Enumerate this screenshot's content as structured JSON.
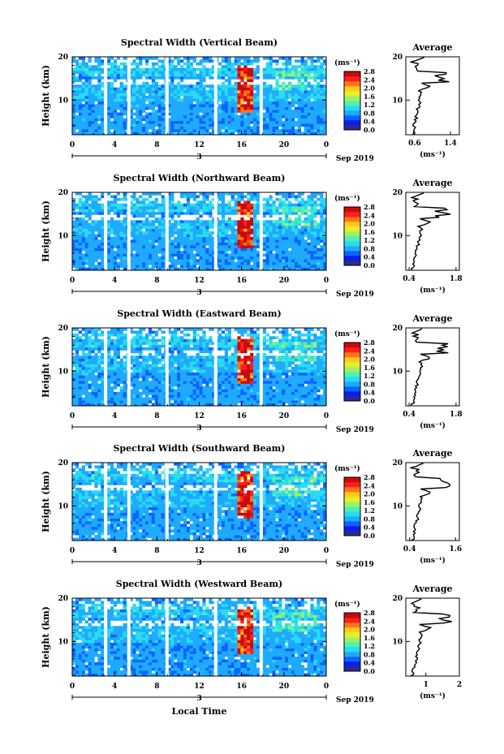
{
  "colorbar": {
    "unit": "(ms⁻¹)",
    "ticks": [
      "2.8",
      "2.4",
      "2.0",
      "1.6",
      "1.2",
      "0.8",
      "0.4",
      "0.0"
    ],
    "colors": [
      "#2b2b8f",
      "#0a1ef0",
      "#0a64ff",
      "#1eaaff",
      "#28dcf0",
      "#50f0b4",
      "#a0f064",
      "#e6f028",
      "#ffc81e",
      "#ff7814",
      "#ff1e1e",
      "#c80a0a"
    ]
  },
  "footer": {
    "date": "Sep 2019",
    "day": "3",
    "xlabel": "Local Time"
  },
  "chart_data": [
    {
      "type": "heatmap",
      "title": "Spectral Width (Vertical Beam)",
      "ylabel": "Height (km)",
      "x_ticks": [
        "0",
        "4",
        "8",
        "12",
        "16",
        "20",
        "0"
      ],
      "y_ticks": [
        "20",
        "10"
      ],
      "xlim": [
        0,
        24
      ],
      "ylim": [
        2,
        20
      ],
      "gaps_hours": [
        3.0,
        5.2,
        8.8,
        13.4,
        17.7
      ],
      "average": {
        "title": "Average",
        "x_ticks": [
          "0.6",
          "1.4"
        ],
        "xlim": [
          0.4,
          1.6
        ],
        "xlabel": "(ms⁻¹)",
        "y_ticks": [
          "20",
          "10"
        ]
      }
    },
    {
      "type": "heatmap",
      "title": "Spectral Width (Northward Beam)",
      "ylabel": "Height (km)",
      "x_ticks": [
        "0",
        "4",
        "8",
        "12",
        "16",
        "20",
        "0"
      ],
      "y_ticks": [
        "20",
        "10"
      ],
      "xlim": [
        0,
        24
      ],
      "ylim": [
        2,
        20
      ],
      "gaps_hours": [
        3.0,
        5.2,
        8.8,
        13.4,
        17.7
      ],
      "average": {
        "title": "Average",
        "x_ticks": [
          "0.4",
          "1.8"
        ],
        "xlim": [
          0.3,
          1.9
        ],
        "xlabel": "(ms⁻¹)",
        "y_ticks": [
          "20",
          "10"
        ]
      }
    },
    {
      "type": "heatmap",
      "title": "Spectral Width (Eastward Beam)",
      "ylabel": "Height (km)",
      "x_ticks": [
        "0",
        "4",
        "8",
        "12",
        "16",
        "20",
        "0"
      ],
      "y_ticks": [
        "20",
        "10"
      ],
      "xlim": [
        0,
        24
      ],
      "ylim": [
        2,
        20
      ],
      "gaps_hours": [
        3.0,
        5.2,
        8.8,
        13.4,
        17.7
      ],
      "average": {
        "title": "Average",
        "x_ticks": [
          "0.4",
          "1.8"
        ],
        "xlim": [
          0.3,
          1.9
        ],
        "xlabel": "(ms⁻¹)",
        "y_ticks": [
          "20",
          "10"
        ]
      }
    },
    {
      "type": "heatmap",
      "title": "Spectral Width (Southward Beam)",
      "ylabel": "Height (km)",
      "x_ticks": [
        "0",
        "4",
        "8",
        "12",
        "16",
        "20",
        "0"
      ],
      "y_ticks": [
        "20",
        "10"
      ],
      "xlim": [
        0,
        24
      ],
      "ylim": [
        2,
        20
      ],
      "gaps_hours": [
        3.0,
        5.2,
        8.8,
        13.4,
        17.7
      ],
      "average": {
        "title": "Average",
        "x_ticks": [
          "0.4",
          "1.6"
        ],
        "xlim": [
          0.3,
          1.7
        ],
        "xlabel": "(ms⁻¹)",
        "y_ticks": [
          "20",
          "10"
        ]
      }
    },
    {
      "type": "heatmap",
      "title": "Spectral Width (Westward Beam)",
      "ylabel": "Height (km)",
      "x_ticks": [
        "0",
        "4",
        "8",
        "12",
        "16",
        "20",
        "0"
      ],
      "y_ticks": [
        "20",
        "10"
      ],
      "xlim": [
        0,
        24
      ],
      "ylim": [
        2,
        20
      ],
      "gaps_hours": [
        3.0,
        5.2,
        8.8,
        13.4,
        17.7
      ],
      "average": {
        "title": "Average",
        "x_ticks": [
          "1",
          "2"
        ],
        "xlim": [
          0.4,
          2.0
        ],
        "xlabel": "(ms⁻¹)",
        "y_ticks": [
          "20",
          "10"
        ]
      }
    }
  ]
}
